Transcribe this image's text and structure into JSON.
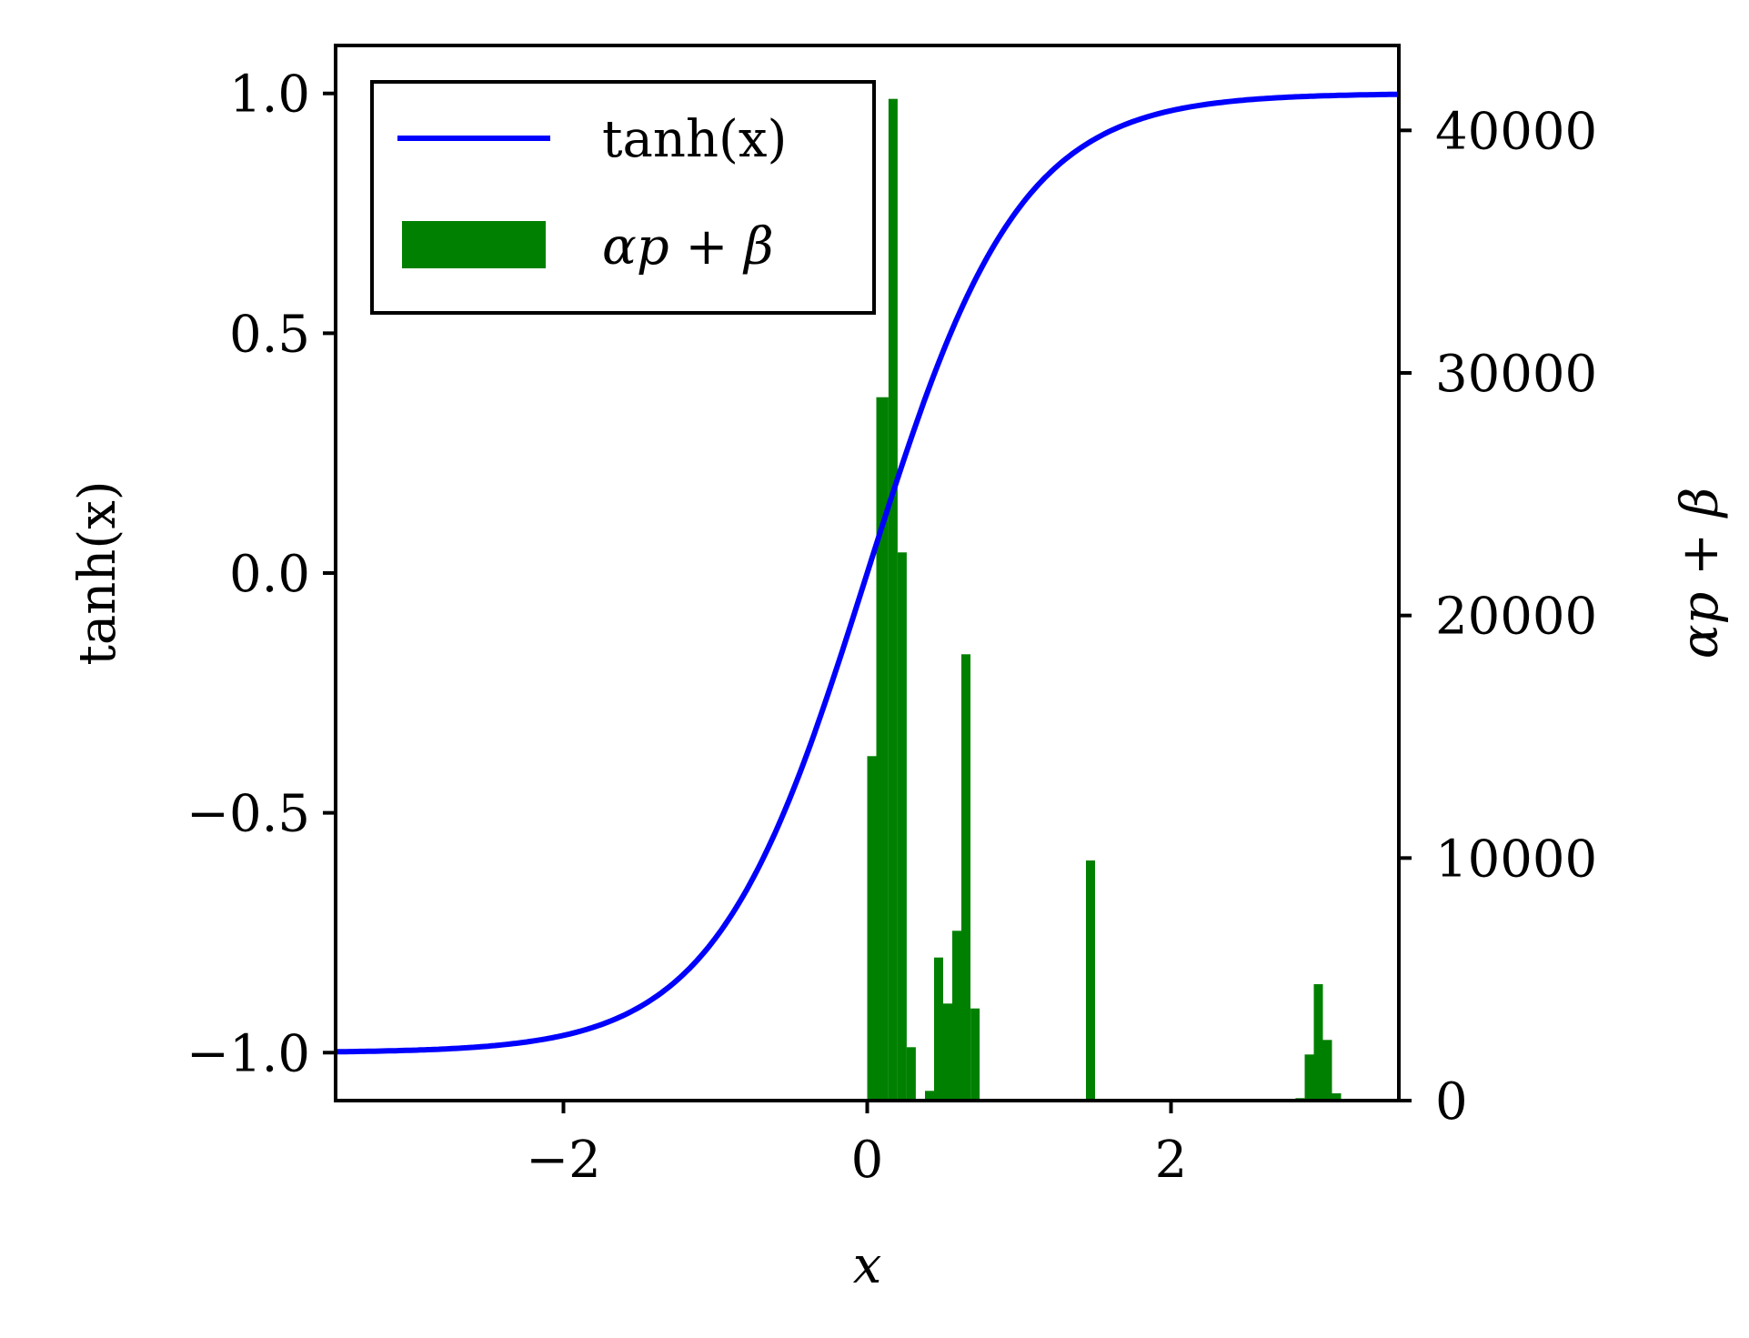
{
  "chart_data": {
    "type": "line",
    "xlabel": "x",
    "ylabel_left": "tanh(x)",
    "ylabel_right": "αp + β",
    "xlim": [
      -3.5,
      3.5
    ],
    "ylim_left": [
      -1.1,
      1.1
    ],
    "ylim_right": [
      0,
      43500
    ],
    "x_ticks": [
      -2,
      0,
      2
    ],
    "x_tick_labels": [
      "−2",
      "0",
      "2"
    ],
    "y_left_ticks": [
      -1.0,
      -0.5,
      0.0,
      0.5,
      1.0
    ],
    "y_left_tick_labels": [
      "−1.0",
      "−0.5",
      "0.0",
      "0.5",
      "1.0"
    ],
    "y_right_ticks": [
      0,
      10000,
      20000,
      30000,
      40000
    ],
    "y_right_tick_labels": [
      "0",
      "10000",
      "20000",
      "30000",
      "40000"
    ],
    "legend_position": "upper-left",
    "series": [
      {
        "name": "tanh(x)",
        "kind": "line",
        "color": "#0000ff",
        "axis": "left",
        "function": "tanh",
        "x_range": [
          -3.5,
          3.5
        ]
      },
      {
        "name": "αp + β",
        "kind": "histogram",
        "color": "#008000",
        "axis": "right",
        "bins": [
          {
            "x0": 0.0,
            "x1": 0.06,
            "value": 14200
          },
          {
            "x0": 0.06,
            "x1": 0.14,
            "value": 29000
          },
          {
            "x0": 0.14,
            "x1": 0.2,
            "value": 41300
          },
          {
            "x0": 0.2,
            "x1": 0.26,
            "value": 22600
          },
          {
            "x0": 0.26,
            "x1": 0.32,
            "value": 2200
          },
          {
            "x0": 0.38,
            "x1": 0.44,
            "value": 400
          },
          {
            "x0": 0.44,
            "x1": 0.5,
            "value": 5900
          },
          {
            "x0": 0.5,
            "x1": 0.56,
            "value": 4000
          },
          {
            "x0": 0.56,
            "x1": 0.62,
            "value": 7000
          },
          {
            "x0": 0.62,
            "x1": 0.68,
            "value": 18400
          },
          {
            "x0": 0.68,
            "x1": 0.74,
            "value": 3800
          },
          {
            "x0": 1.44,
            "x1": 1.5,
            "value": 9900
          },
          {
            "x0": 2.82,
            "x1": 2.88,
            "value": 100
          },
          {
            "x0": 2.88,
            "x1": 2.94,
            "value": 1900
          },
          {
            "x0": 2.94,
            "x1": 3.0,
            "value": 4800
          },
          {
            "x0": 3.0,
            "x1": 3.06,
            "value": 2500
          },
          {
            "x0": 3.06,
            "x1": 3.12,
            "value": 300
          }
        ]
      }
    ]
  }
}
